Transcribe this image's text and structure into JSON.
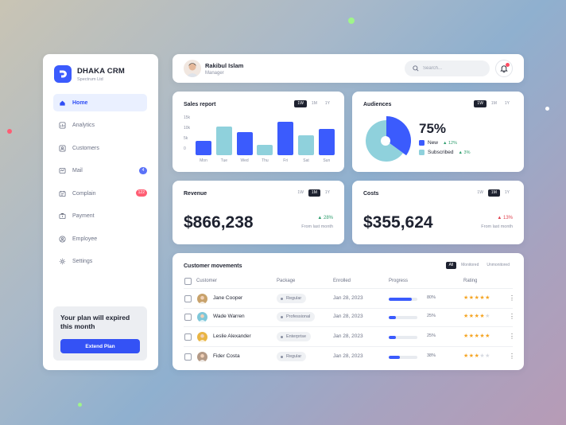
{
  "brand": {
    "name": "DHAKA CRM",
    "subtitle": "Spectrum Ltd"
  },
  "sidebar": {
    "items": [
      {
        "label": "Home",
        "icon": "home-icon",
        "active": true
      },
      {
        "label": "Analytics",
        "icon": "analytics-icon"
      },
      {
        "label": "Customers",
        "icon": "customers-icon"
      },
      {
        "label": "Mail",
        "icon": "mail-icon",
        "badge": "4",
        "badge_color": "#5b72f8"
      },
      {
        "label": "Complain",
        "icon": "complain-icon",
        "badge": "122",
        "badge_color": "#ff5d73"
      },
      {
        "label": "Payment",
        "icon": "payment-icon"
      },
      {
        "label": "Employee",
        "icon": "employee-icon"
      },
      {
        "label": "Settings",
        "icon": "settings-icon"
      }
    ],
    "plan": {
      "title": "Your plan will expired this month",
      "button": "Extend Plan"
    }
  },
  "header": {
    "user_name": "Rakibul Islam",
    "user_role": "Manager",
    "search_placeholder": "Search..."
  },
  "periods": [
    "1W",
    "1M",
    "1Y"
  ],
  "sales": {
    "title": "Sales report",
    "active_period": "1W",
    "chart_data": {
      "type": "bar",
      "categories": [
        "Mon",
        "Tue",
        "Wed",
        "Thu",
        "Fri",
        "Sat",
        "Sun"
      ],
      "values": [
        4.5,
        10.5,
        8,
        3,
        12.5,
        7,
        9.5
      ],
      "y_ticks": [
        "15k",
        "10k",
        "5k",
        "0"
      ],
      "ylim": [
        0,
        15
      ],
      "highlight": [
        1,
        3,
        5
      ],
      "colors": {
        "primary": "#3b5bfd",
        "secondary": "#8fd1dc"
      }
    }
  },
  "audiences": {
    "title": "Audiences",
    "active_period": "1W",
    "percent": "75%",
    "chart_data": {
      "type": "pie",
      "slices": [
        {
          "name": "New",
          "value": 35,
          "color": "#3b5bfd",
          "change": "12%"
        },
        {
          "name": "Subscribed",
          "value": 65,
          "color": "#8fd1dc",
          "change": "3%"
        }
      ]
    }
  },
  "revenue": {
    "title": "Revenue",
    "active_period": "1M",
    "value": "$866,238",
    "change": "28%",
    "change_dir": "up",
    "change_label": "From last month"
  },
  "costs": {
    "title": "Costs",
    "active_period": "1M",
    "value": "$355,624",
    "change": "13%",
    "change_dir": "up",
    "change_label": "From last month"
  },
  "customers": {
    "title": "Customer movements",
    "filters": [
      "All",
      "Monitored",
      "Unmonitored"
    ],
    "active_filter": "All",
    "headers": [
      "Customer",
      "Package",
      "Enrolled",
      "Progress",
      "Rating"
    ],
    "rows": [
      {
        "name": "Jane Cooper",
        "package": "Regular",
        "enrolled": "Jan 28, 2023",
        "progress": 80,
        "progress_label": "80%",
        "rating": 5,
        "avatar_color": "#c8a26b"
      },
      {
        "name": "Wade Warren",
        "package": "Professional",
        "enrolled": "Jan 28, 2023",
        "progress": 25,
        "progress_label": "25%",
        "rating": 4,
        "avatar_color": "#7fc7d9"
      },
      {
        "name": "Leslie Alexander",
        "package": "Enterprise",
        "enrolled": "Jan 28, 2023",
        "progress": 25,
        "progress_label": "25%",
        "rating": 5,
        "avatar_color": "#e9b544"
      },
      {
        "name": "Fider Costa",
        "package": "Regular",
        "enrolled": "Jan 28, 2023",
        "progress": 38,
        "progress_label": "38%",
        "rating": 3,
        "avatar_color": "#b49a86"
      }
    ]
  },
  "colors": {
    "accent": "#3b5bfd",
    "star": "#f5a524",
    "star_empty": "#d7dbe2",
    "up": "#2f9e6e",
    "down": "#e0424f"
  }
}
